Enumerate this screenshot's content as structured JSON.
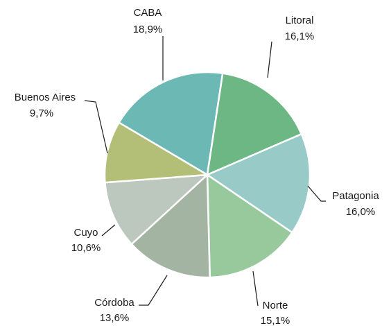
{
  "chart_data": {
    "type": "pie",
    "categories": [
      "CABA",
      "Litoral",
      "Patagonia",
      "Norte",
      "Córdoba",
      "Cuyo",
      "Buenos Aires"
    ],
    "values": [
      18.9,
      16.1,
      16.0,
      15.1,
      13.6,
      10.6,
      9.7
    ],
    "value_labels": [
      "18,9%",
      "16,1%",
      "16,0%",
      "15,1%",
      "13,6%",
      "10,6%",
      "9,7%"
    ],
    "colors": [
      "#6bb8b4",
      "#6db785",
      "#98cac8",
      "#98c99d",
      "#a4b4a2",
      "#bcc7bd",
      "#b3bf77"
    ]
  }
}
